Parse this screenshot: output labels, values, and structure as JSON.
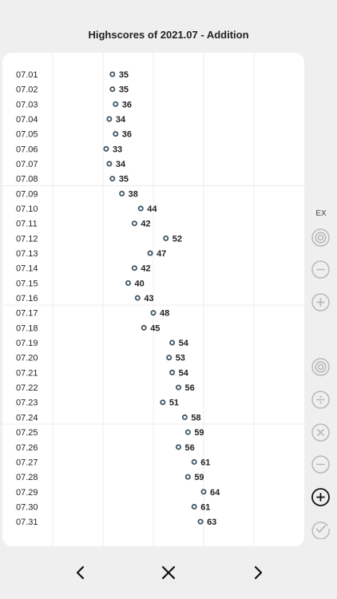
{
  "header": {
    "title": "Highscores of 2021.07 - Addition"
  },
  "sidebar": {
    "ex_label": "EX",
    "icons": [
      {
        "name": "target-icon",
        "active": false
      },
      {
        "name": "minus-circle-icon",
        "active": false
      },
      {
        "name": "plus-circle-icon",
        "active": false
      },
      {
        "name": "target-icon",
        "active": false
      },
      {
        "name": "divide-circle-icon",
        "active": false
      },
      {
        "name": "times-circle-icon",
        "active": false
      },
      {
        "name": "minus-circle-icon",
        "active": false
      },
      {
        "name": "plus-circle-icon",
        "active": true
      },
      {
        "name": "check-circle-icon",
        "active": false
      }
    ]
  },
  "nav": {
    "prev": "chevron-left-icon",
    "close": "close-icon",
    "next": "chevron-right-icon"
  },
  "colors": {
    "point": "#3d5463",
    "active_icon": "#111111",
    "inactive_icon": "#b8b8b8"
  },
  "chart_data": {
    "type": "scatter",
    "title": "Highscores of 2021.07 - Addition",
    "categories": [
      "07.01",
      "07.02",
      "07.03",
      "07.04",
      "07.05",
      "07.06",
      "07.07",
      "07.08",
      "07.09",
      "07.10",
      "07.11",
      "07.12",
      "07.13",
      "07.14",
      "07.15",
      "07.16",
      "07.17",
      "07.18",
      "07.19",
      "07.20",
      "07.21",
      "07.22",
      "07.23",
      "07.24",
      "07.25",
      "07.26",
      "07.27",
      "07.28",
      "07.29",
      "07.30",
      "07.31"
    ],
    "values": [
      35,
      35,
      36,
      34,
      36,
      33,
      34,
      35,
      38,
      44,
      42,
      52,
      47,
      42,
      40,
      43,
      48,
      45,
      54,
      53,
      54,
      56,
      51,
      58,
      59,
      56,
      61,
      59,
      64,
      61,
      63
    ],
    "xlim": [
      0,
      80
    ],
    "grid": true
  }
}
